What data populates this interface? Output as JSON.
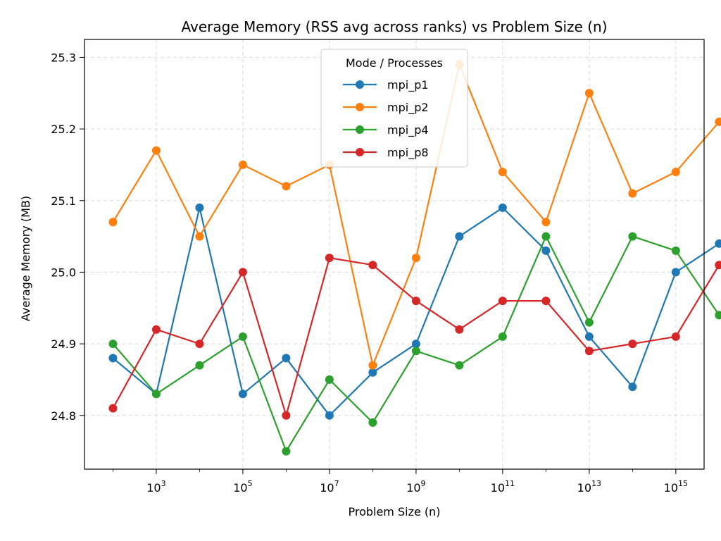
{
  "chart_data": {
    "type": "line",
    "title": "Average Memory (RSS avg across ranks) vs Problem Size (n)",
    "xlabel": "Problem Size (n)",
    "ylabel": "Average Memory (MB)",
    "xscale": "log",
    "xlim": [
      22,
      4500000000000000
    ],
    "ylim": [
      24.725,
      25.325
    ],
    "x": [
      100,
      1000,
      10000,
      100000,
      1000000,
      10000000,
      100000000,
      1000000000,
      10000000000,
      100000000000,
      1000000000000,
      10000000000000,
      100000000000000,
      1000000000000000,
      10000000000000000
    ],
    "x_ticks": [
      {
        "base": "10",
        "exp": "3",
        "value": 1000
      },
      {
        "base": "10",
        "exp": "5",
        "value": 100000
      },
      {
        "base": "10",
        "exp": "7",
        "value": 10000000
      },
      {
        "base": "10",
        "exp": "9",
        "value": 1000000000
      },
      {
        "base": "10",
        "exp": "11",
        "value": 100000000000
      },
      {
        "base": "10",
        "exp": "13",
        "value": 10000000000000
      },
      {
        "base": "10",
        "exp": "15",
        "value": 1000000000000000
      }
    ],
    "y_ticks": [
      {
        "label": "24.8",
        "value": 24.8
      },
      {
        "label": "24.9",
        "value": 24.9
      },
      {
        "label": "25.0",
        "value": 25.0
      },
      {
        "label": "25.1",
        "value": 25.1
      },
      {
        "label": "25.2",
        "value": 25.2
      },
      {
        "label": "25.3",
        "value": 25.3
      }
    ],
    "grid": true,
    "legend": {
      "title": "Mode / Processes",
      "placement": "upper-center"
    },
    "series": [
      {
        "name": "mpi_p1",
        "color": "#1f77b4",
        "values": [
          24.88,
          24.83,
          25.09,
          24.83,
          24.88,
          24.8,
          24.86,
          24.9,
          25.05,
          25.09,
          25.03,
          24.91,
          24.84,
          25.0,
          25.04
        ]
      },
      {
        "name": "mpi_p2",
        "color": "#ff7f0e",
        "values": [
          25.07,
          25.17,
          25.05,
          25.15,
          25.12,
          25.15,
          24.87,
          25.02,
          25.29,
          25.14,
          25.07,
          25.25,
          25.11,
          25.14,
          25.21
        ]
      },
      {
        "name": "mpi_p4",
        "color": "#2ca02c",
        "values": [
          24.9,
          24.83,
          24.87,
          24.91,
          24.75,
          24.85,
          24.79,
          24.89,
          24.87,
          24.91,
          25.05,
          24.93,
          25.05,
          25.03,
          24.94
        ]
      },
      {
        "name": "mpi_p8",
        "color": "#d62728",
        "values": [
          24.81,
          24.92,
          24.9,
          25.0,
          24.8,
          25.02,
          25.01,
          24.96,
          24.92,
          24.96,
          24.96,
          24.89,
          24.9,
          24.91,
          25.01
        ]
      }
    ]
  }
}
